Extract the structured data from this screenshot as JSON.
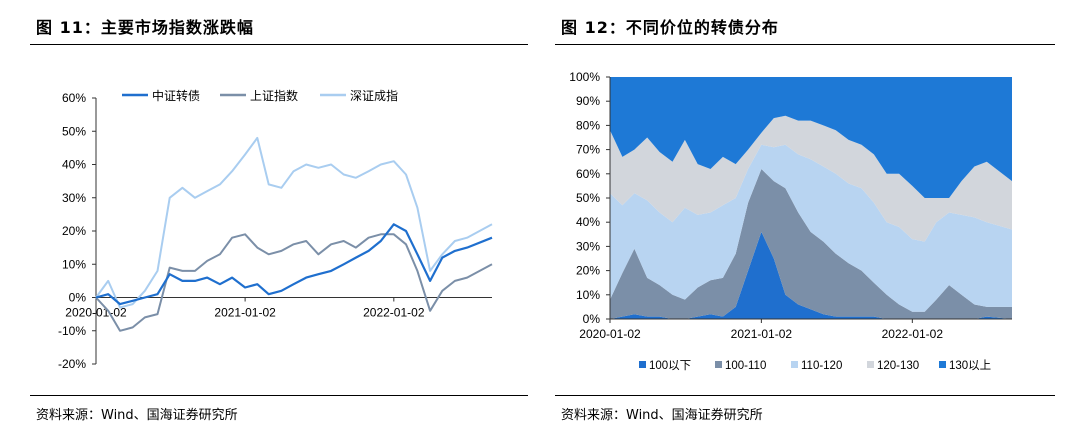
{
  "left_panel": {
    "title": "图 11：主要市场指数涨跌幅",
    "source": "资料来源：Wind、国海证券研究所"
  },
  "right_panel": {
    "title": "图 12：不同价位的转债分布",
    "source": "资料来源：Wind、国海证券研究所"
  },
  "chart_data": [
    {
      "type": "line",
      "title": "",
      "xlabel": "",
      "ylabel": "",
      "x_ticks": [
        "2020-01-02",
        "2021-01-02",
        "2022-01-02"
      ],
      "x_range": [
        "2020-01-02",
        "2022-08-31"
      ],
      "y_ticks": [
        "-20%",
        "-10%",
        "0%",
        "10%",
        "20%",
        "30%",
        "40%",
        "50%",
        "60%"
      ],
      "ylim": [
        -20,
        60
      ],
      "legend_position": "top",
      "grid": false,
      "x": [
        "2020-01-02",
        "2020-02-01",
        "2020-03-01",
        "2020-04-01",
        "2020-05-01",
        "2020-06-01",
        "2020-07-01",
        "2020-08-01",
        "2020-09-01",
        "2020-10-01",
        "2020-11-01",
        "2020-12-01",
        "2021-01-02",
        "2021-02-01",
        "2021-03-01",
        "2021-04-01",
        "2021-05-01",
        "2021-06-01",
        "2021-07-01",
        "2021-08-01",
        "2021-09-01",
        "2021-10-01",
        "2021-11-01",
        "2021-12-01",
        "2022-01-02",
        "2022-02-01",
        "2022-03-01",
        "2022-04-01",
        "2022-05-01",
        "2022-06-01",
        "2022-07-01",
        "2022-08-31"
      ],
      "series": [
        {
          "name": "中证转债",
          "color": "#1f6fce",
          "width": 2.2,
          "values": [
            0,
            1,
            -2,
            -1,
            0,
            1,
            7,
            5,
            5,
            6,
            4,
            6,
            3,
            4,
            1,
            2,
            4,
            6,
            7,
            8,
            10,
            12,
            14,
            17,
            22,
            20,
            13,
            5,
            12,
            14,
            15,
            18
          ]
        },
        {
          "name": "上证指数",
          "color": "#7b8fa8",
          "width": 2.0,
          "values": [
            0,
            -4,
            -10,
            -9,
            -6,
            -5,
            9,
            8,
            8,
            11,
            13,
            18,
            19,
            15,
            13,
            14,
            16,
            17,
            13,
            16,
            17,
            15,
            18,
            19,
            19,
            16,
            8,
            -4,
            2,
            5,
            6,
            10
          ]
        },
        {
          "name": "深证成指",
          "color": "#a9cdf0",
          "width": 2.0,
          "values": [
            0,
            5,
            -3,
            -2,
            2,
            8,
            30,
            33,
            30,
            32,
            34,
            38,
            43,
            48,
            34,
            33,
            38,
            40,
            39,
            40,
            37,
            36,
            38,
            40,
            41,
            37,
            27,
            8,
            13,
            17,
            18,
            22
          ]
        }
      ]
    },
    {
      "type": "area",
      "stacked": true,
      "percent": true,
      "title": "",
      "xlabel": "",
      "ylabel": "",
      "x_ticks": [
        "2020-01-02",
        "2021-01-02",
        "2022-01-02"
      ],
      "x_range": [
        "2020-01-02",
        "2022-08-31"
      ],
      "y_ticks": [
        "0%",
        "10%",
        "20%",
        "30%",
        "40%",
        "50%",
        "60%",
        "70%",
        "80%",
        "90%",
        "100%"
      ],
      "ylim": [
        0,
        100
      ],
      "legend_position": "bottom",
      "x": [
        "2020-01-02",
        "2020-02-01",
        "2020-03-01",
        "2020-04-01",
        "2020-05-01",
        "2020-06-01",
        "2020-07-01",
        "2020-08-01",
        "2020-09-01",
        "2020-10-01",
        "2020-11-01",
        "2020-12-01",
        "2021-01-02",
        "2021-02-01",
        "2021-03-01",
        "2021-04-01",
        "2021-05-01",
        "2021-06-01",
        "2021-07-01",
        "2021-08-01",
        "2021-09-01",
        "2021-10-01",
        "2021-11-01",
        "2021-12-01",
        "2022-01-02",
        "2022-02-01",
        "2022-03-01",
        "2022-04-01",
        "2022-05-01",
        "2022-06-01",
        "2022-07-01",
        "2022-08-31"
      ],
      "series": [
        {
          "name": "100以下",
          "color": "#1f6fce",
          "values": [
            0,
            1,
            2,
            1,
            1,
            0,
            0,
            1,
            2,
            1,
            5,
            20,
            36,
            25,
            10,
            6,
            4,
            2,
            1,
            1,
            1,
            1,
            0,
            0,
            0,
            0,
            0,
            0,
            0,
            0,
            1,
            0
          ]
        },
        {
          "name": "100-110",
          "color": "#7b8fa8",
          "values": [
            8,
            18,
            27,
            16,
            13,
            10,
            8,
            12,
            14,
            16,
            22,
            28,
            26,
            32,
            44,
            38,
            32,
            30,
            26,
            22,
            19,
            14,
            10,
            6,
            3,
            3,
            8,
            14,
            10,
            6,
            4,
            5
          ]
        },
        {
          "name": "110-120",
          "color": "#b8d4f1",
          "values": [
            44,
            28,
            23,
            32,
            30,
            30,
            38,
            30,
            28,
            30,
            23,
            14,
            10,
            14,
            18,
            24,
            30,
            31,
            33,
            33,
            34,
            33,
            30,
            32,
            30,
            29,
            32,
            30,
            33,
            36,
            35,
            32
          ]
        },
        {
          "name": "120-130",
          "color": "#d2d6dc",
          "values": [
            26,
            20,
            18,
            26,
            25,
            25,
            28,
            21,
            18,
            20,
            14,
            8,
            5,
            12,
            12,
            14,
            16,
            17,
            18,
            18,
            18,
            20,
            20,
            22,
            22,
            18,
            10,
            6,
            14,
            21,
            25,
            20
          ]
        },
        {
          "name": "130以上",
          "color": "#1e79d6",
          "values": [
            22,
            33,
            30,
            25,
            31,
            35,
            26,
            36,
            38,
            33,
            36,
            30,
            23,
            17,
            16,
            18,
            18,
            20,
            22,
            26,
            28,
            32,
            40,
            40,
            45,
            50,
            50,
            50,
            43,
            37,
            35,
            43
          ]
        }
      ]
    }
  ]
}
